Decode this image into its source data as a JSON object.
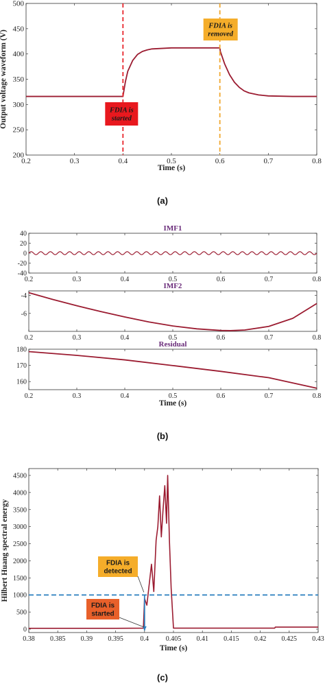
{
  "chart_data": [
    {
      "id": "a",
      "type": "line",
      "panel_label": "(a)",
      "xlabel": "Time (s)",
      "ylabel": "Output voltage waveform (V)",
      "xlim": [
        0.2,
        0.8
      ],
      "ylim": [
        200,
        500
      ],
      "xticks": [
        0.2,
        0.3,
        0.4,
        0.5,
        0.6,
        0.7,
        0.8
      ],
      "yticks": [
        200,
        250,
        300,
        350,
        400,
        450,
        500
      ],
      "series_color": "#9b1b30",
      "series": [
        {
          "x": [
            0.2,
            0.3,
            0.4,
            0.401,
            0.405,
            0.41,
            0.42,
            0.43,
            0.44,
            0.45,
            0.46,
            0.48,
            0.5,
            0.55,
            0.6,
            0.601,
            0.61,
            0.62,
            0.63,
            0.64,
            0.65,
            0.66,
            0.68,
            0.7,
            0.75,
            0.8
          ],
          "y": [
            316,
            316,
            316,
            322,
            345,
            366,
            387,
            399,
            405,
            408,
            410,
            411,
            412,
            412,
            412,
            405,
            380,
            359,
            344,
            334,
            327,
            323,
            319,
            317,
            316,
            316
          ]
        }
      ],
      "vlines": [
        {
          "x": 0.4,
          "color": "#e8232a"
        },
        {
          "x": 0.6,
          "color": "#f0a830"
        }
      ],
      "annotations": [
        {
          "text_lines": [
            "FDIA is",
            "started"
          ],
          "bg": "#e8181e",
          "fg": "#1a1a1a"
        },
        {
          "text_lines": [
            "FDIA is",
            "removed"
          ],
          "bg": "#f5ad2a",
          "fg": "#1a1a1a"
        }
      ]
    },
    {
      "id": "b1",
      "type": "line",
      "title": "IMF1",
      "xlim": [
        0.2,
        0.8
      ],
      "ylim": [
        -40,
        40
      ],
      "xticks": [
        0.2,
        0.3,
        0.4,
        0.5,
        0.6,
        0.7,
        0.8
      ],
      "yticks": [
        -40,
        -20,
        0,
        20,
        40
      ],
      "oscillation": {
        "amplitude": 3,
        "cycles": 30
      },
      "series_color": "#9b1b30"
    },
    {
      "id": "b2",
      "type": "line",
      "title": "IMF2",
      "xlim": [
        0.2,
        0.8
      ],
      "ylim": [
        -8,
        -3.5
      ],
      "xticks": [
        0.2,
        0.3,
        0.4,
        0.5,
        0.6,
        0.7,
        0.8
      ],
      "yticks": [
        -4,
        -6
      ],
      "series_color": "#9b1b30",
      "series": [
        {
          "x": [
            0.2,
            0.25,
            0.3,
            0.35,
            0.4,
            0.45,
            0.5,
            0.55,
            0.6,
            0.62,
            0.65,
            0.7,
            0.75,
            0.8
          ],
          "y": [
            -3.7,
            -4.45,
            -5.15,
            -5.8,
            -6.4,
            -6.95,
            -7.4,
            -7.72,
            -7.9,
            -7.92,
            -7.85,
            -7.45,
            -6.55,
            -4.9
          ]
        }
      ]
    },
    {
      "id": "b3",
      "type": "line",
      "title": "Residual",
      "panel_label": "(b)",
      "xlabel": "Time (s)",
      "xlim": [
        0.2,
        0.8
      ],
      "ylim": [
        155,
        180
      ],
      "xticks": [
        0.2,
        0.3,
        0.4,
        0.5,
        0.6,
        0.7,
        0.8
      ],
      "yticks": [
        160,
        170,
        180
      ],
      "series_color": "#9b1b30",
      "series": [
        {
          "x": [
            0.2,
            0.3,
            0.4,
            0.5,
            0.6,
            0.7,
            0.8
          ],
          "y": [
            178.5,
            176.2,
            173.4,
            169.9,
            166.3,
            162.4,
            155.9
          ]
        }
      ]
    },
    {
      "id": "c",
      "type": "line",
      "panel_label": "(c)",
      "xlabel": "Time (s)",
      "ylabel": "Hilbert Huang spectral energy",
      "xlim": [
        0.38,
        0.43
      ],
      "ylim": [
        -100,
        4700
      ],
      "xticks": [
        0.38,
        0.385,
        0.39,
        0.395,
        0.4,
        0.405,
        0.41,
        0.415,
        0.42,
        0.425,
        0.43
      ],
      "yticks": [
        0,
        500,
        1000,
        1500,
        2000,
        2500,
        3000,
        3500,
        4000,
        4500
      ],
      "series_color": "#9b1b30",
      "threshold": {
        "y": 1000,
        "color": "#2b7fbf"
      },
      "detect_marker": {
        "x": 0.4,
        "color": "#2b7fbf"
      },
      "series": [
        {
          "x": [
            0.38,
            0.395,
            0.3998,
            0.4,
            0.4004,
            0.4008,
            0.4012,
            0.4016,
            0.402,
            0.4023,
            0.4026,
            0.4029,
            0.4032,
            0.4035,
            0.4038,
            0.404,
            0.4043,
            0.4046,
            0.405,
            0.41,
            0.42,
            0.4225,
            0.4226,
            0.43
          ],
          "y": [
            25,
            25,
            30,
            900,
            700,
            1300,
            1900,
            1100,
            2600,
            3000,
            3900,
            2700,
            3500,
            4200,
            3100,
            4500,
            2600,
            1200,
            30,
            30,
            30,
            30,
            60,
            60
          ]
        }
      ],
      "annotations": [
        {
          "text_lines": [
            "FDIA is",
            "detected"
          ],
          "bg": "#f5ad2a",
          "fg": "#1a1a1a"
        },
        {
          "text_lines": [
            "FDIA is",
            "started"
          ],
          "bg": "#e8602a",
          "fg": "#1a1a1a"
        }
      ]
    }
  ]
}
